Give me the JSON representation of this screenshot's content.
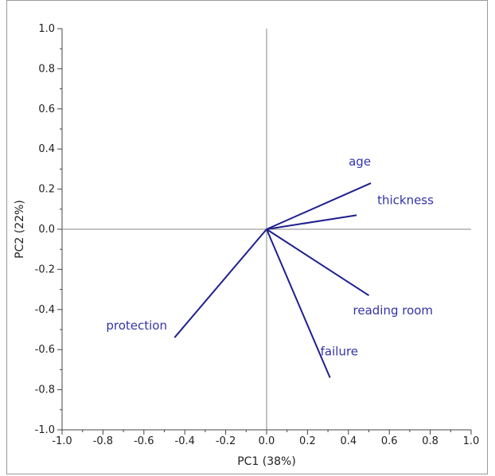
{
  "chart_data": {
    "type": "biplot",
    "xlabel": "PC1 (38%)",
    "ylabel": "PC2 (22%)",
    "xlim": [
      -1.0,
      1.0
    ],
    "ylim": [
      -1.0,
      1.0
    ],
    "major_step": 0.2,
    "x_ticks": [
      "-1.0",
      "-0.8",
      "-0.6",
      "-0.4",
      "-0.2",
      "0.0",
      "0.2",
      "0.4",
      "0.6",
      "0.8",
      "1.0"
    ],
    "y_ticks": [
      "1.0",
      "0.8",
      "0.6",
      "0.4",
      "0.2",
      "0.0",
      "-0.2",
      "-0.4",
      "-0.6",
      "-0.8",
      "-1.0"
    ],
    "grid": false,
    "zero_lines": true,
    "colors": {
      "vector": "#1f1f8f",
      "label": "#3333aa",
      "axis": "#444444",
      "zero_line": "#888888"
    },
    "vectors": [
      {
        "name": "age",
        "x": 0.51,
        "y": 0.23
      },
      {
        "name": "thickness",
        "x": 0.44,
        "y": 0.07
      },
      {
        "name": "reading room",
        "x": 0.5,
        "y": -0.33
      },
      {
        "name": "failure",
        "x": 0.31,
        "y": -0.74
      },
      {
        "name": "protection",
        "x": -0.45,
        "y": -0.54
      }
    ]
  }
}
